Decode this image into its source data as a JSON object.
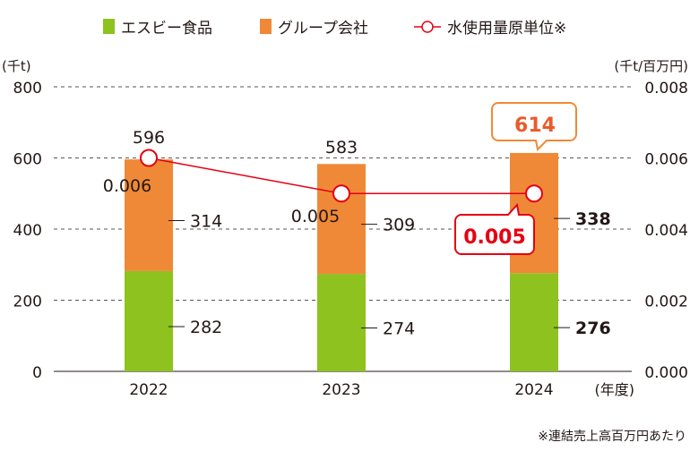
{
  "chart_data": {
    "type": "bar",
    "stacked": true,
    "categories": [
      "2022",
      "2023",
      "2024"
    ],
    "series": [
      {
        "name": "エスビー食品",
        "values": [
          282,
          274,
          276
        ],
        "color": "#8dc21f"
      },
      {
        "name": "グループ会社",
        "values": [
          314,
          309,
          338
        ],
        "color": "#f08937"
      }
    ],
    "totals": [
      "596",
      "583",
      "614"
    ],
    "line_series": {
      "name": "水使用量原単位※",
      "values": [
        0.006,
        0.005,
        0.005
      ],
      "labels": [
        "0.006",
        "0.005",
        "0.005"
      ],
      "color": "#e60012",
      "axis": "right"
    },
    "left_axis": {
      "label": "(千t)",
      "range": [
        0,
        800
      ],
      "ticks": [
        "0",
        "200",
        "400",
        "600",
        "800"
      ]
    },
    "right_axis": {
      "label": "(千t/百万円)",
      "range": [
        0,
        0.008
      ],
      "ticks": [
        "0.000",
        "0.002",
        "0.004",
        "0.006",
        "0.008"
      ]
    },
    "xlabel": "(年度)",
    "grid": true,
    "legend_position": "top",
    "highlight_color": "#ea5b2a",
    "footnote": "※連結売上高百万円あたり"
  }
}
